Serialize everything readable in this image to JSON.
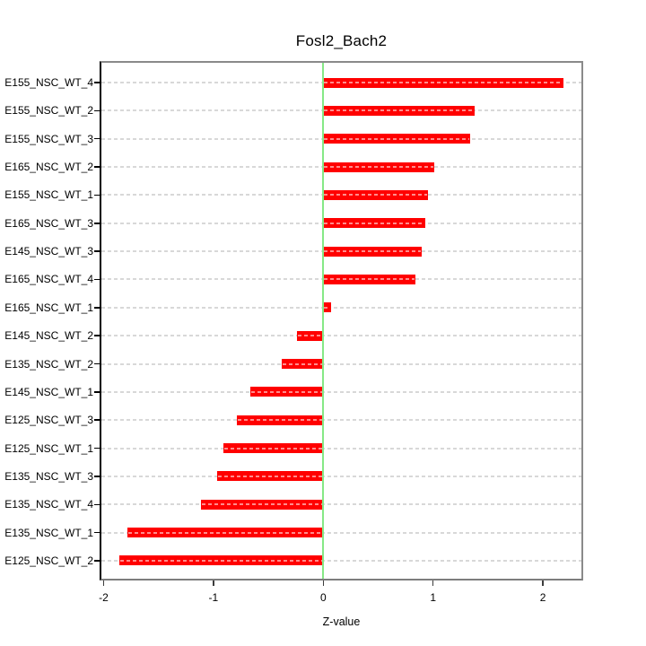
{
  "chart_data": {
    "type": "bar",
    "orientation": "horizontal",
    "title": "Fosl2_Bach2",
    "xlabel": "Z-value",
    "categories": [
      "E155_NSC_WT_4",
      "E155_NSC_WT_2",
      "E155_NSC_WT_3",
      "E165_NSC_WT_2",
      "E155_NSC_WT_1",
      "E165_NSC_WT_3",
      "E145_NSC_WT_3",
      "E165_NSC_WT_4",
      "E165_NSC_WT_1",
      "E145_NSC_WT_2",
      "E135_NSC_WT_2",
      "E145_NSC_WT_1",
      "E125_NSC_WT_3",
      "E125_NSC_WT_1",
      "E135_NSC_WT_3",
      "E135_NSC_WT_4",
      "E135_NSC_WT_1",
      "E125_NSC_WT_2"
    ],
    "values": [
      2.19,
      1.38,
      1.34,
      1.01,
      0.95,
      0.93,
      0.9,
      0.84,
      0.07,
      -0.24,
      -0.38,
      -0.66,
      -0.79,
      -0.91,
      -0.97,
      -1.11,
      -1.78,
      -1.86
    ],
    "xlim": [
      -2.02,
      2.35
    ],
    "x_ticks": [
      -2,
      -1,
      0,
      1,
      2
    ],
    "x_tick_labels": [
      "-2",
      "-1",
      "0",
      "1",
      "2"
    ],
    "grid": true,
    "legend": false,
    "bar_color": "#ff0000",
    "zero_line_color": "#86e886",
    "grid_color": "#d8d8d8",
    "box_color": "#8a8a8a",
    "axis_color": "#000000"
  }
}
